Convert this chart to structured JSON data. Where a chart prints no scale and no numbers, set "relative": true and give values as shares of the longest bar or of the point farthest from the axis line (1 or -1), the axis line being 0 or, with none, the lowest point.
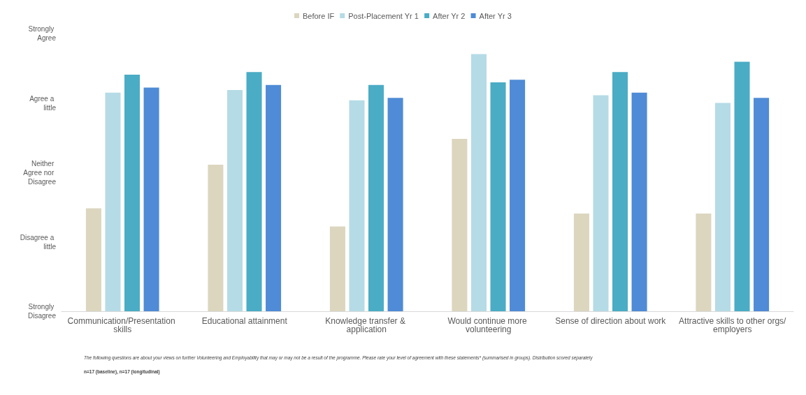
{
  "chart_data": {
    "type": "bar",
    "categories": [
      "Communication/Presentation skills",
      "Educational attainment",
      "Knowledge transfer & application",
      "Would continue more volunteering",
      "Sense of direction about work",
      "Attractive skills to other orgs/employers"
    ],
    "series": [
      {
        "name": "Before IF",
        "color": "#dcd6bf",
        "values": [
          0.4,
          0.57,
          0.33,
          0.67,
          0.38,
          0.38
        ]
      },
      {
        "name": "Post-Placement Yr 1",
        "color": "#b5dbe6",
        "values": [
          0.85,
          0.86,
          0.82,
          1,
          0.84,
          0.81
        ]
      },
      {
        "name": "After Yr 2",
        "color": "#4aacc5",
        "values": [
          0.92,
          0.93,
          0.88,
          0.89,
          0.93,
          0.97
        ]
      },
      {
        "name": "After Yr 3",
        "color": "#4f8bd6",
        "values": [
          0.87,
          0.88,
          0.83,
          0.9,
          0.85,
          0.83
        ]
      }
    ],
    "relative": true,
    "legend": "top",
    "annotations": [
      "Strongly Agree",
      "Agree a little",
      "Neither Agree nor Disagree",
      "Disagree a little",
      "Strongly Disagree",
      "The following questions are about your views on further Volunteering and Employability that may or may not be a result of the programme. Please rate your level of agreement with these statements* (summarised in groups). Distribution scored separately",
      "n=17 (baseline), n=17 (longitudinal)"
    ]
  }
}
